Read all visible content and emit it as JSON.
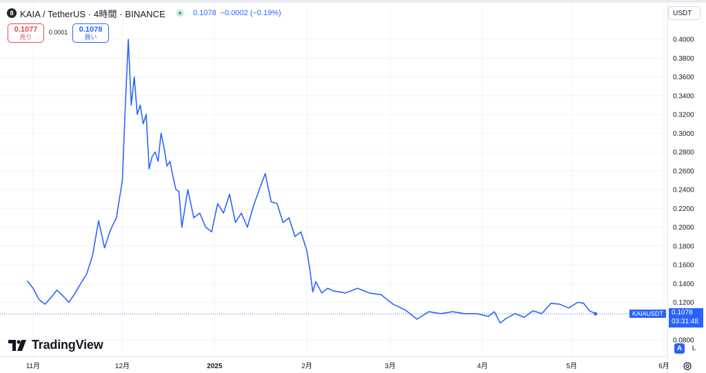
{
  "header": {
    "logo_glyph": "8",
    "title": "KAIA / TetherUS · 4時間 · BINANCE",
    "last": "0.1078",
    "change": "−0.0002 (−0.19%)"
  },
  "trade": {
    "sell_price": "0.1077",
    "sell_label": "売り",
    "spread": "0.0001",
    "buy_price": "0.1078",
    "buy_label": "買い"
  },
  "currency": "USDT",
  "symbol_tag": "KAIAUSDT",
  "last_tag": {
    "price": "0.1078",
    "countdown": "03:31:48"
  },
  "scale_badges": {
    "auto": "A",
    "log": "L"
  },
  "brand": "TradingView",
  "colors": {
    "line": "#2962ff",
    "accent": "#2962ff",
    "sell": "#e8454f",
    "status": "#22ab94"
  },
  "chart_data": {
    "type": "line",
    "series": [
      {
        "name": "KAIAUSDT",
        "x": [
          "2024-10-30",
          "2024-11-01",
          "2024-11-03",
          "2024-11-05",
          "2024-11-07",
          "2024-11-09",
          "2024-11-11",
          "2024-11-13",
          "2024-11-15",
          "2024-11-17",
          "2024-11-19",
          "2024-11-21",
          "2024-11-23",
          "2024-11-25",
          "2024-11-27",
          "2024-11-29",
          "2024-12-01",
          "2024-12-02",
          "2024-12-03",
          "2024-12-04",
          "2024-12-05",
          "2024-12-06",
          "2024-12-07",
          "2024-12-08",
          "2024-12-09",
          "2024-12-10",
          "2024-12-11",
          "2024-12-12",
          "2024-12-13",
          "2024-12-14",
          "2024-12-15",
          "2024-12-16",
          "2024-12-17",
          "2024-12-18",
          "2024-12-19",
          "2024-12-20",
          "2024-12-21",
          "2024-12-22",
          "2024-12-23",
          "2024-12-25",
          "2024-12-27",
          "2024-12-29",
          "2024-12-31",
          "2025-01-02",
          "2025-01-04",
          "2025-01-06",
          "2025-01-08",
          "2025-01-10",
          "2025-01-12",
          "2025-01-14",
          "2025-01-16",
          "2025-01-18",
          "2025-01-20",
          "2025-01-22",
          "2025-01-24",
          "2025-01-26",
          "2025-01-28",
          "2025-01-30",
          "2025-02-01",
          "2025-02-02",
          "2025-02-03",
          "2025-02-04",
          "2025-02-06",
          "2025-02-08",
          "2025-02-10",
          "2025-02-14",
          "2025-02-18",
          "2025-02-22",
          "2025-02-26",
          "2025-03-02",
          "2025-03-06",
          "2025-03-10",
          "2025-03-14",
          "2025-03-18",
          "2025-03-22",
          "2025-03-26",
          "2025-03-30",
          "2025-04-03",
          "2025-04-05",
          "2025-04-07",
          "2025-04-09",
          "2025-04-12",
          "2025-04-15",
          "2025-04-18",
          "2025-04-21",
          "2025-04-24",
          "2025-04-27",
          "2025-04-30",
          "2025-05-03",
          "2025-05-05",
          "2025-05-07",
          "2025-05-09"
        ],
        "values": [
          0.143,
          0.135,
          0.123,
          0.118,
          0.125,
          0.133,
          0.127,
          0.12,
          0.129,
          0.14,
          0.15,
          0.17,
          0.207,
          0.178,
          0.197,
          0.21,
          0.25,
          0.33,
          0.4,
          0.33,
          0.36,
          0.32,
          0.33,
          0.31,
          0.32,
          0.262,
          0.275,
          0.28,
          0.27,
          0.3,
          0.285,
          0.265,
          0.27,
          0.254,
          0.24,
          0.238,
          0.2,
          0.22,
          0.24,
          0.21,
          0.215,
          0.2,
          0.195,
          0.225,
          0.215,
          0.235,
          0.205,
          0.215,
          0.2,
          0.222,
          0.24,
          0.257,
          0.227,
          0.225,
          0.205,
          0.21,
          0.19,
          0.195,
          0.175,
          0.155,
          0.131,
          0.142,
          0.13,
          0.135,
          0.132,
          0.13,
          0.135,
          0.13,
          0.128,
          0.118,
          0.112,
          0.102,
          0.11,
          0.108,
          0.11,
          0.108,
          0.108,
          0.105,
          0.11,
          0.098,
          0.103,
          0.108,
          0.104,
          0.111,
          0.108,
          0.119,
          0.118,
          0.114,
          0.12,
          0.119,
          0.111,
          0.108
        ]
      }
    ],
    "x_ticks": [
      {
        "label": "11月",
        "date": "2024-11-01"
      },
      {
        "label": "12月",
        "date": "2024-12-01"
      },
      {
        "label": "2025",
        "date": "2025-01-01",
        "bold": true
      },
      {
        "label": "2月",
        "date": "2025-02-01"
      },
      {
        "label": "3月",
        "date": "2025-03-01"
      },
      {
        "label": "4月",
        "date": "2025-04-01"
      },
      {
        "label": "5月",
        "date": "2025-05-01"
      },
      {
        "label": "6月",
        "date": "2025-06-01"
      }
    ],
    "y_ticks": [
      "0.4000",
      "0.3800",
      "0.3600",
      "0.3400",
      "0.3200",
      "0.3000",
      "0.2800",
      "0.2600",
      "0.2400",
      "0.2200",
      "0.2000",
      "0.1800",
      "0.1600",
      "0.1400",
      "0.1200",
      "0.0800"
    ],
    "ylim": [
      0.076,
      0.42
    ],
    "last_value": 0.1078,
    "grid": true,
    "axis_position": "right"
  }
}
